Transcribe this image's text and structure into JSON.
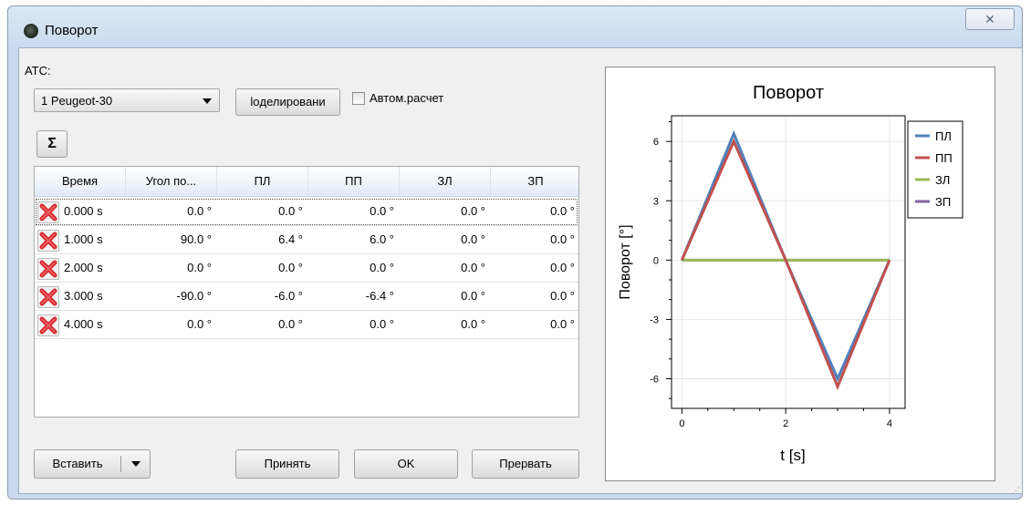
{
  "window": {
    "title": "Поворот",
    "close_glyph": "✕"
  },
  "form": {
    "ats_label": "АТС:",
    "vehicle_select": "1 Peugeot-30",
    "modeling_button": "loделировани",
    "auto_calc_label": "Автом.расчет",
    "sum_button": "Σ"
  },
  "table": {
    "columns": [
      "Время",
      "Угол по...",
      "ПЛ",
      "ПП",
      "ЗЛ",
      "ЗП"
    ],
    "rows": [
      [
        "0.000 s",
        "0.0 °",
        "0.0 °",
        "0.0 °",
        "0.0 °",
        "0.0 °"
      ],
      [
        "1.000 s",
        "90.0 °",
        "6.4 °",
        "6.0 °",
        "0.0 °",
        "0.0 °"
      ],
      [
        "2.000 s",
        "0.0 °",
        "0.0 °",
        "0.0 °",
        "0.0 °",
        "0.0 °"
      ],
      [
        "3.000 s",
        "-90.0 °",
        "-6.0 °",
        "-6.4 °",
        "0.0 °",
        "0.0 °"
      ],
      [
        "4.000 s",
        "0.0 °",
        "0.0 °",
        "0.0 °",
        "0.0 °",
        "0.0 °"
      ]
    ]
  },
  "buttons": {
    "insert": "Вставить",
    "apply": "Принять",
    "ok": "OK",
    "cancel": "Прервать"
  },
  "chart_data": {
    "type": "line",
    "title": "Поворот",
    "xlabel": "t [s]",
    "ylabel": "Поворот [°]",
    "x": [
      0,
      1,
      2,
      3,
      4
    ],
    "xlim": [
      -0.2,
      4.3
    ],
    "ylim": [
      -7.5,
      7.3
    ],
    "xticks": [
      0,
      2,
      4
    ],
    "yticks": [
      -6,
      -3,
      0,
      3,
      6
    ],
    "grid": true,
    "legend": "right",
    "series": [
      {
        "name": "ПЛ",
        "color": "#4f81bd",
        "values": [
          0,
          6.4,
          0,
          -6.0,
          0
        ]
      },
      {
        "name": "ПП",
        "color": "#c0504d",
        "values": [
          0,
          6.0,
          0,
          -6.4,
          0
        ]
      },
      {
        "name": "ЗЛ",
        "color": "#9bbb59",
        "values": [
          0,
          0,
          0,
          0,
          0
        ]
      },
      {
        "name": "ЗП",
        "color": "#8064a2",
        "values": [
          0,
          0,
          0,
          0,
          0
        ]
      }
    ]
  }
}
